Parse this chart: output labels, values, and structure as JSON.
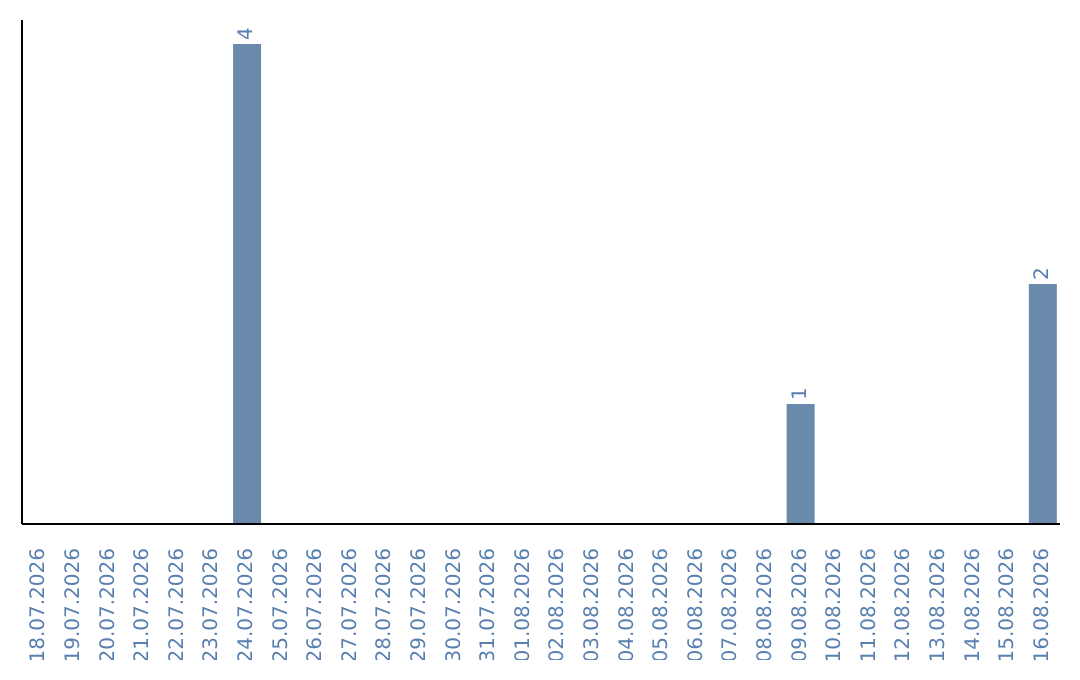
{
  "chart_data": {
    "type": "bar",
    "categories": [
      "18.07.2026",
      "19.07.2026",
      "20.07.2026",
      "21.07.2026",
      "22.07.2026",
      "23.07.2026",
      "24.07.2026",
      "25.07.2026",
      "26.07.2026",
      "27.07.2026",
      "28.07.2026",
      "29.07.2026",
      "30.07.2026",
      "31.07.2026",
      "01.08.2026",
      "02.08.2026",
      "03.08.2026",
      "04.08.2026",
      "05.08.2026",
      "06.08.2026",
      "07.08.2026",
      "08.08.2026",
      "09.08.2026",
      "10.08.2026",
      "11.08.2026",
      "12.08.2026",
      "13.08.2026",
      "14.08.2026",
      "15.08.2026",
      "16.08.2026"
    ],
    "values": [
      null,
      null,
      null,
      null,
      null,
      null,
      4,
      null,
      null,
      null,
      null,
      null,
      null,
      null,
      null,
      null,
      null,
      null,
      null,
      null,
      null,
      null,
      1,
      null,
      null,
      null,
      null,
      null,
      null,
      2
    ],
    "color": "#6a8aab",
    "data_labels": true
  }
}
